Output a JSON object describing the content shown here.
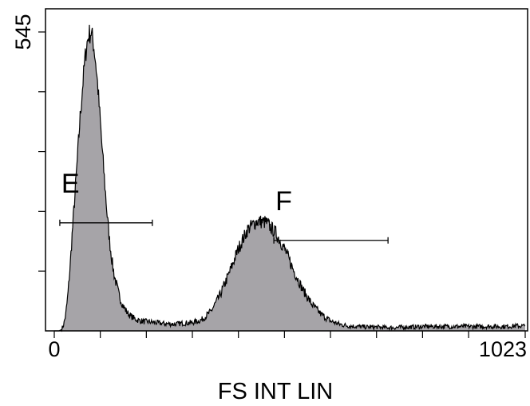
{
  "chart_data": {
    "type": "area",
    "xlabel": "FS INT LIN",
    "ylabel": "",
    "xlim": [
      0,
      1023
    ],
    "ylim": [
      0,
      545
    ],
    "x_tick_labels": [
      {
        "value": 0,
        "text": "0"
      },
      {
        "value": 1023,
        "text": "1023"
      }
    ],
    "y_tick_labels": [
      {
        "value": 545,
        "text": "545"
      }
    ],
    "x_minor_ticks": [
      100,
      200,
      300,
      400,
      500,
      600,
      700,
      800,
      900
    ],
    "y_minor_ticks": [
      109,
      218,
      327,
      436
    ],
    "fill_color": "#a6a4a8",
    "line_color": "#000000",
    "grid": false,
    "series": [
      {
        "x": [
          0,
          5,
          10,
          15,
          20,
          25,
          30,
          35,
          40,
          45,
          50,
          55,
          60,
          65,
          70,
          75,
          80,
          85,
          90,
          95,
          100,
          105,
          110,
          115,
          120,
          125,
          130,
          135,
          140,
          145,
          150,
          155,
          160,
          165,
          170,
          175,
          180,
          185,
          190,
          195,
          200,
          210,
          220,
          230,
          240,
          250,
          260,
          270,
          280,
          300,
          320,
          340,
          360,
          380,
          400,
          420,
          440,
          460,
          480,
          500,
          520,
          540,
          560,
          580,
          600,
          620,
          640,
          660,
          680,
          700,
          720,
          740,
          760,
          780,
          800,
          820,
          840,
          860,
          880,
          900,
          920,
          940,
          960,
          980,
          1000,
          1023
        ],
        "values": [
          0,
          0,
          0,
          2,
          10,
          30,
          70,
          125,
          190,
          250,
          310,
          375,
          430,
          480,
          520,
          540,
          545,
          525,
          490,
          440,
          380,
          320,
          265,
          210,
          165,
          130,
          102,
          85,
          68,
          55,
          45,
          38,
          32,
          28,
          25,
          22,
          20,
          19,
          18,
          17,
          17,
          16,
          15,
          14,
          13,
          13,
          12,
          13,
          14,
          15,
          20,
          35,
          65,
          105,
          150,
          185,
          200,
          198,
          180,
          150,
          110,
          75,
          48,
          30,
          18,
          12,
          9,
          8,
          7,
          7,
          6,
          6,
          7,
          7,
          8,
          8,
          8,
          8,
          8,
          8,
          8,
          8,
          8,
          8,
          9,
          9
        ]
      }
    ],
    "gates": [
      {
        "label": "E",
        "x_start": 12,
        "x_end": 213,
        "y": 197
      },
      {
        "label": "F",
        "x_start": 477,
        "x_end": 725,
        "y": 165
      }
    ]
  }
}
